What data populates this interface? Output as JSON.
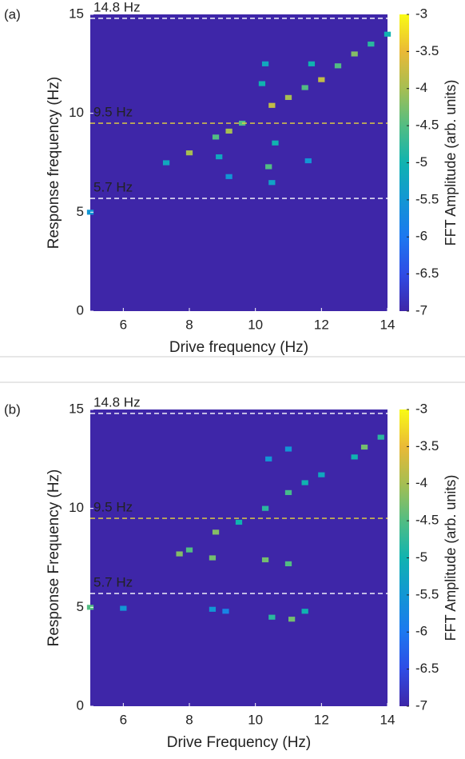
{
  "chart_data": [
    {
      "type": "heatmap",
      "panel_label": "(a)",
      "xlabel": "Drive frequency (Hz)",
      "ylabel": "Response frequency (Hz)",
      "colorbar_label": "FFT Amplitude (arb. units)",
      "xlim": [
        5,
        14
      ],
      "ylim": [
        0,
        15
      ],
      "xticks": [
        6,
        8,
        10,
        12,
        14
      ],
      "yticks": [
        0,
        5,
        10,
        15
      ],
      "clim": [
        -7,
        -3
      ],
      "cticks": [
        -3,
        -3.5,
        -4,
        -4.5,
        -5,
        -5.5,
        -6,
        -6.5,
        -7
      ],
      "reference_lines": [
        {
          "value": 14.8,
          "label": "14.8 Hz",
          "color": "#ffffff"
        },
        {
          "value": 9.5,
          "label": "9.5 Hz",
          "color": "#e8d53c"
        },
        {
          "value": 5.7,
          "label": "5.7 Hz",
          "color": "#ffffff"
        }
      ],
      "cells": {
        "x": [
          5,
          7.3,
          8,
          8.8,
          9.2,
          9.6,
          10.5,
          11,
          11.5,
          12,
          12.5,
          13,
          13.5,
          14,
          8.9,
          9.2,
          10.4,
          10.6,
          10.3,
          10.5,
          11.6,
          11.7,
          10.2
        ],
        "y": [
          5,
          7.5,
          8,
          8.8,
          9.1,
          9.5,
          10.4,
          10.8,
          11.3,
          11.7,
          12.4,
          13,
          13.5,
          14,
          7.8,
          6.8,
          7.3,
          8.5,
          12.5,
          6.5,
          7.6,
          12.5,
          11.5
        ],
        "values": [
          -5.5,
          -5.2,
          -4,
          -4.5,
          -4,
          -4.5,
          -3.8,
          -4,
          -4.5,
          -3.8,
          -4.5,
          -4.2,
          -4.8,
          -5,
          -5.2,
          -5.5,
          -4.5,
          -5,
          -5.2,
          -5.3,
          -5.5,
          -5,
          -5
        ]
      }
    },
    {
      "type": "heatmap",
      "panel_label": "(b)",
      "xlabel": "Drive Frequency (Hz)",
      "ylabel": "Response Frequency (Hz)",
      "colorbar_label": "FFT Amplitude (arb. units)",
      "xlim": [
        5,
        14
      ],
      "ylim": [
        0,
        15
      ],
      "xticks": [
        6,
        8,
        10,
        12,
        14
      ],
      "yticks": [
        0,
        5,
        10,
        15
      ],
      "clim": [
        -7,
        -3
      ],
      "cticks": [
        -3,
        -3.5,
        -4,
        -4.5,
        -5,
        -5.5,
        -6,
        -6.5,
        -7
      ],
      "reference_lines": [
        {
          "value": 14.8,
          "label": "14.8 Hz",
          "color": "#ffffff"
        },
        {
          "value": 9.5,
          "label": "9.5 Hz",
          "color": "#e8d53c"
        },
        {
          "value": 5.7,
          "label": "5.7 Hz",
          "color": "#ffffff"
        }
      ],
      "cells": {
        "x": [
          5,
          6,
          7.7,
          8,
          8.8,
          9.5,
          10.3,
          11,
          11.5,
          12,
          13,
          13.3,
          13.8,
          8.7,
          10.3,
          11,
          11.1,
          10.5,
          11.5,
          10.4,
          11,
          8.7,
          9.1
        ],
        "y": [
          5,
          4.95,
          7.7,
          7.9,
          8.8,
          9.3,
          10,
          10.8,
          11.3,
          11.7,
          12.6,
          13.1,
          13.6,
          7.5,
          7.4,
          7.2,
          4.4,
          4.5,
          4.8,
          12.5,
          13,
          4.9,
          4.8
        ],
        "values": [
          -4.5,
          -5.5,
          -4.2,
          -4.5,
          -4.2,
          -5,
          -4.8,
          -4.6,
          -5,
          -5.2,
          -5,
          -4.3,
          -4.8,
          -4.3,
          -4.3,
          -4.5,
          -4.3,
          -4.8,
          -5,
          -5.5,
          -5.5,
          -5.5,
          -5.8
        ]
      }
    }
  ]
}
